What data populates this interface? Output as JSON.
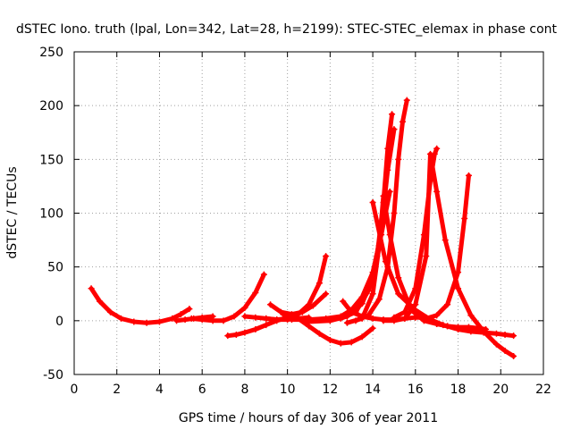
{
  "chart_data": {
    "type": "scatter",
    "title": "dSTEC Iono. truth (lpal, Lon=342, Lat=28, h=2199): STEC-STEC_elemax in phase cont",
    "xlabel": "GPS time / hours of day 306 of year 2011",
    "ylabel": "dSTEC  / TECUs",
    "xlim": [
      0,
      22
    ],
    "ylim": [
      -50,
      250
    ],
    "xticks": [
      0,
      2,
      4,
      6,
      8,
      10,
      12,
      14,
      16,
      18,
      20,
      22
    ],
    "yticks": [
      -50,
      0,
      50,
      100,
      150,
      200,
      250
    ],
    "grid": true,
    "marker": "+",
    "color": "#ff0000",
    "series": [
      {
        "x": [
          0.8,
          1.2,
          1.7,
          2.2,
          2.8,
          3.4,
          4.0,
          4.6,
          5.0,
          5.4
        ],
        "y": [
          30,
          18,
          8,
          2,
          -1,
          -2,
          -1,
          2,
          6,
          11
        ]
      },
      {
        "x": [
          4.8,
          5.2,
          5.6,
          6.0,
          6.5
        ],
        "y": [
          0,
          1,
          2,
          3,
          4
        ]
      },
      {
        "x": [
          5.5,
          6.0,
          6.5,
          7.0,
          7.5,
          8.0,
          8.5,
          8.9
        ],
        "y": [
          2,
          1,
          0,
          0,
          4,
          12,
          26,
          43
        ]
      },
      {
        "x": [
          7.2,
          7.6,
          8.0,
          8.5,
          9.0,
          9.5,
          10.0
        ],
        "y": [
          -14,
          -13,
          -11,
          -8,
          -4,
          0,
          3
        ]
      },
      {
        "x": [
          8.0,
          8.5,
          9.0,
          9.5,
          10.0,
          10.5,
          11.0
        ],
        "y": [
          4,
          3,
          2,
          1,
          1,
          2,
          3
        ]
      },
      {
        "x": [
          9.0,
          9.5,
          10.0,
          10.5,
          11.0,
          11.5,
          11.8
        ],
        "y": [
          2,
          1,
          2,
          6,
          15,
          35,
          60
        ]
      },
      {
        "x": [
          9.2,
          9.7,
          10.2,
          10.7,
          11.2,
          11.8
        ],
        "y": [
          15,
          8,
          6,
          8,
          14,
          25
        ]
      },
      {
        "x": [
          9.8,
          10.5,
          11.0,
          11.5,
          12.0,
          12.5,
          13.0,
          13.5,
          14.0
        ],
        "y": [
          6,
          2,
          -5,
          -12,
          -18,
          -21,
          -20,
          -15,
          -7
        ]
      },
      {
        "x": [
          10.2,
          11.0,
          11.8,
          12.5,
          13.0,
          13.5,
          14.0,
          14.4,
          14.8
        ],
        "y": [
          1,
          1,
          2,
          4,
          10,
          22,
          45,
          80,
          120
        ]
      },
      {
        "x": [
          11.0,
          12.0,
          12.8,
          13.5,
          14.0,
          14.4,
          14.7,
          15.0
        ],
        "y": [
          -1,
          0,
          4,
          16,
          40,
          85,
          140,
          178
        ]
      },
      {
        "x": [
          12.5,
          13.2,
          13.8,
          14.2,
          14.5,
          14.7,
          14.9
        ],
        "y": [
          2,
          8,
          28,
          60,
          110,
          160,
          192
        ]
      },
      {
        "x": [
          12.6,
          13.0,
          13.5,
          14.0,
          14.5,
          15.0,
          15.5,
          16.0,
          16.5,
          17.0,
          17.5,
          18.0,
          18.5,
          19.0,
          19.3
        ],
        "y": [
          18,
          8,
          4,
          2,
          1,
          1,
          2,
          3,
          3,
          -3,
          -5,
          -6,
          -6,
          -7,
          -8
        ]
      },
      {
        "x": [
          12.8,
          13.5,
          14.0,
          14.3,
          14.5,
          14.8,
          15.2,
          15.8,
          16.4,
          17.0,
          17.5
        ],
        "y": [
          -2,
          2,
          25,
          70,
          116,
          80,
          40,
          10,
          0,
          -3,
          -5
        ]
      },
      {
        "x": [
          13.2,
          13.8,
          14.3,
          14.7,
          15.0,
          15.2,
          15.4,
          15.6
        ],
        "y": [
          0,
          5,
          20,
          50,
          100,
          150,
          185,
          205
        ]
      },
      {
        "x": [
          14.0,
          14.6,
          15.2,
          16.0,
          16.7,
          17.3,
          18.0,
          18.6,
          19.2,
          19.8,
          20.2,
          20.6
        ],
        "y": [
          110,
          55,
          25,
          10,
          1,
          -4,
          -8,
          -10,
          -11,
          -12,
          -13,
          -14
        ]
      },
      {
        "x": [
          14.5,
          15.0,
          15.5,
          16.0,
          16.5,
          16.7,
          17.0,
          17.4,
          18.0,
          18.6,
          19.2,
          19.8,
          20.2,
          20.6
        ],
        "y": [
          0,
          0,
          2,
          15,
          60,
          155,
          120,
          75,
          30,
          5,
          -10,
          -22,
          -28,
          -33
        ]
      },
      {
        "x": [
          15.0,
          15.5,
          16.0,
          16.4,
          16.7,
          16.9,
          17.0
        ],
        "y": [
          3,
          8,
          30,
          80,
          130,
          155,
          160
        ]
      },
      {
        "x": [
          16.5,
          17.0,
          17.5,
          18.0,
          18.3,
          18.5
        ],
        "y": [
          2,
          5,
          15,
          45,
          95,
          135
        ]
      }
    ]
  }
}
